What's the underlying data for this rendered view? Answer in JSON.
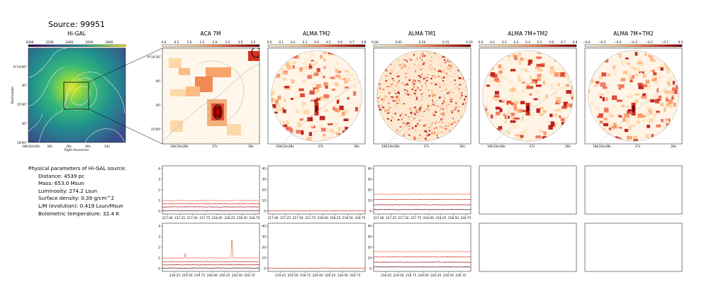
{
  "source_title": "Source: 99951",
  "colors": {
    "aca_map": "#f4b07a",
    "rings": "#aaaaaa",
    "spectra": [
      "#ee6a4b",
      "#d8322a",
      "#a4161b",
      "#5a0a0d"
    ]
  },
  "maps": [
    {
      "title": "Hi-GAL",
      "colorbar_ticks": [
        "2000",
        "2200",
        "2400",
        "2600",
        "2800"
      ],
      "colormap": "viridis",
      "axis_ylabel": "Declination",
      "axis_xlabel": "Right Ascension",
      "y_ticks": [
        "-9°14'00\"",
        "30\"",
        "15'00\"",
        "30\"",
        "16'00\""
      ],
      "x_ticks": [
        "18h33m32s",
        "30s",
        "28s",
        "26s",
        "24s"
      ]
    },
    {
      "title": "ACA 7M",
      "colorbar_ticks": [
        "0.0",
        "0.5",
        "1.0",
        "1.5",
        "2.0",
        "2.5",
        "3.0",
        "3.5"
      ],
      "colormap": "OrRd",
      "y_ticks": [
        "-9°14'30\"",
        "40\"",
        "50\"",
        "15'00\""
      ],
      "x_ticks": [
        "18h33m28s",
        "27s",
        "26s"
      ]
    },
    {
      "title": "ALMA TM2",
      "colorbar_ticks": [
        "0.0",
        "0.1",
        "0.2",
        "0.3",
        "0.4",
        "0.5",
        "0.6",
        "0.7",
        "0.8"
      ],
      "colormap": "OrRd",
      "x_ticks": [
        "18h33m28s",
        "27s",
        "26s"
      ]
    },
    {
      "title": "ALMA TM1",
      "colorbar_ticks": [
        "0.00",
        "0.05",
        "0.10",
        "0.15",
        "0.20"
      ],
      "colormap": "OrRd",
      "x_ticks": [
        "18h33m28s",
        "27s",
        "26s"
      ]
    },
    {
      "title": "ALMA 7M+TM2",
      "colorbar_ticks": [
        "0.0",
        "0.1",
        "0.2",
        "0.3",
        "0.4",
        "0.5",
        "0.6",
        "0.7",
        "0.8"
      ],
      "colormap": "OrRd",
      "x_ticks": [
        "18h33m28s",
        "27s",
        "26s"
      ]
    },
    {
      "title": "ALMA 7M+TM2",
      "colorbar_ticks": [
        "−0.6",
        "−0.5",
        "−0.4",
        "−0.3",
        "−0.2",
        "−0.1",
        "0.0"
      ],
      "colormap": "OrRd",
      "x_ticks": [
        "18h33m28s",
        "27s",
        "26s"
      ]
    }
  ],
  "params": {
    "header": "Physical parameters of Hi-GAL source:",
    "lines": [
      "Distance: 4539 pc",
      "Mass: 653.0 Msun",
      "Luminosity: 274.2 Lsun",
      "Surface density: 0.39 g/cm^2",
      "L/M (evolution): 0.419 Lsun/Msun",
      "Bolometric temperature: 32.4 K"
    ]
  },
  "chart_data": [
    {
      "type": "line",
      "panel": "spectrum row 1, ACA 7M",
      "ylim": [
        0,
        4
      ],
      "yticks": [
        "0",
        "1",
        "2",
        "3",
        "4"
      ],
      "xticks": [
        "217.00",
        "217.25",
        "217.50",
        "217.75",
        "218.00",
        "218.25",
        "218.50",
        "218.75"
      ],
      "xlim": [
        216.9,
        218.85
      ],
      "series": [
        {
          "offset": 1.0,
          "values": []
        },
        {
          "offset": 0.7,
          "values": []
        },
        {
          "offset": 0.4,
          "values": []
        },
        {
          "offset": 0.05,
          "values": []
        }
      ]
    },
    {
      "type": "line",
      "panel": "spectrum row 1, ALMA TM2",
      "ylim": [
        0,
        40
      ],
      "yticks": [
        "0",
        "10",
        "20",
        "30",
        "40"
      ],
      "xticks": [
        "217.00",
        "217.25",
        "217.50",
        "217.75",
        "218.00",
        "218.25",
        "218.50",
        "218.75"
      ],
      "xlim": [
        216.9,
        218.85
      ],
      "series": [
        {
          "offset": 0.4,
          "values": []
        }
      ]
    },
    {
      "type": "line",
      "panel": "spectrum row 1, ALMA TM1",
      "ylim": [
        0,
        40
      ],
      "yticks": [
        "0",
        "10",
        "20",
        "30",
        "40"
      ],
      "xticks": [
        "217.00",
        "217.25",
        "217.50",
        "217.75",
        "218.00",
        "218.25",
        "218.50",
        "218.75"
      ],
      "xlim": [
        216.9,
        218.85
      ],
      "series": [
        {
          "offset": 16,
          "values": []
        },
        {
          "offset": 11,
          "values": []
        },
        {
          "offset": 6,
          "values": []
        },
        {
          "offset": 1.5,
          "values": []
        }
      ]
    },
    {
      "type": "line",
      "panel": "spectrum row 2, ACA 7M",
      "ylim": [
        0,
        4
      ],
      "yticks": [
        "0",
        "1",
        "2",
        "3",
        "4"
      ],
      "xticks": [
        "219.25",
        "219.50",
        "219.75",
        "220.00",
        "220.25",
        "220.50",
        "220.75"
      ],
      "xlim": [
        219.0,
        220.95
      ],
      "series": [
        {
          "offset": 1.0,
          "values": [],
          "peaks": [
            [
              219.46,
              1.4
            ],
            [
              220.4,
              2.7
            ]
          ]
        },
        {
          "offset": 0.65,
          "values": []
        },
        {
          "offset": 0.35,
          "values": []
        },
        {
          "offset": 0.05,
          "values": []
        }
      ]
    },
    {
      "type": "line",
      "panel": "spectrum row 2, ALMA TM2",
      "ylim": [
        0,
        40
      ],
      "yticks": [
        "0",
        "10",
        "20",
        "30",
        "40"
      ],
      "xticks": [
        "219.25",
        "219.50",
        "219.75",
        "220.00",
        "220.25",
        "220.50",
        "220.75"
      ],
      "xlim": [
        219.0,
        220.95
      ],
      "series": [
        {
          "offset": 0.4,
          "values": []
        }
      ]
    },
    {
      "type": "line",
      "panel": "spectrum row 2, ALMA TM1",
      "ylim": [
        0,
        40
      ],
      "yticks": [
        "0",
        "10",
        "20",
        "30",
        "40"
      ],
      "xticks": [
        "219.25",
        "219.50",
        "219.75",
        "220.00",
        "220.25",
        "220.50",
        "220.75"
      ],
      "xlim": [
        219.0,
        220.95
      ],
      "series": [
        {
          "offset": 16,
          "values": []
        },
        {
          "offset": 11,
          "values": []
        },
        {
          "offset": 6,
          "values": []
        },
        {
          "offset": 1.5,
          "values": []
        }
      ]
    }
  ]
}
